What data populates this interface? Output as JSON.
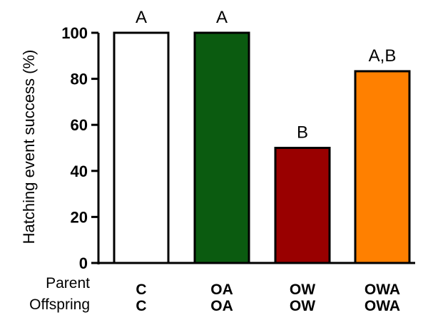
{
  "chart_data": {
    "type": "bar",
    "ylabel": "Hatching event success (%)",
    "ylim": [
      0,
      100
    ],
    "yticks": [
      0,
      20,
      40,
      60,
      80,
      100
    ],
    "grid": false,
    "row_labels": [
      "Parent",
      "Offspring"
    ],
    "categories": [
      {
        "parent": "C",
        "offspring": "C"
      },
      {
        "parent": "OA",
        "offspring": "OA"
      },
      {
        "parent": "OW",
        "offspring": "OW"
      },
      {
        "parent": "OWA",
        "offspring": "OWA"
      }
    ],
    "values": [
      100,
      100,
      50,
      83.3
    ],
    "significance_letters": [
      "A",
      "A",
      "B",
      "A,B"
    ],
    "colors": [
      "#ffffff",
      "#0b5b10",
      "#990000",
      "#ff8000"
    ]
  }
}
